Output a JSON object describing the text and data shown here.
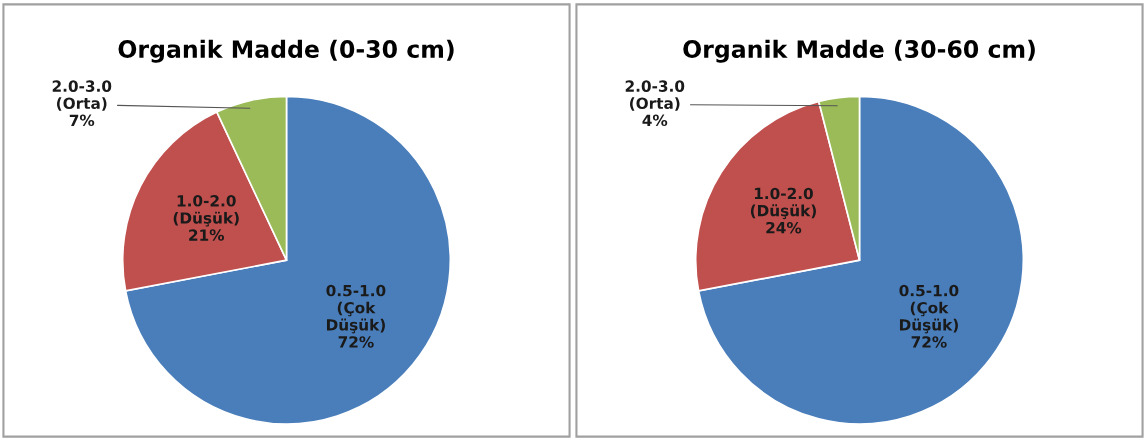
{
  "chart_data": [
    {
      "type": "pie",
      "title": "Organik Madde (0-30 cm)",
      "categories": [
        "0.5-1.0\n(Çok\nDüşük)",
        "1.0-2.0\n(Düşük)",
        "2.0-3.0\n(Orta)"
      ],
      "values": [
        72,
        21,
        7
      ],
      "value_labels": [
        "72%",
        "21%",
        "7%"
      ],
      "colors": [
        "#4a7ebb",
        "#c0504d",
        "#9bbb59"
      ]
    },
    {
      "type": "pie",
      "title": "Organik Madde (30-60 cm)",
      "categories": [
        "0.5-1.0\n(Çok\nDüşük)",
        "1.0-2.0\n(Düşük)",
        "2.0-3.0\n(Orta)"
      ],
      "values": [
        72,
        24,
        4
      ],
      "value_labels": [
        "72%",
        "24%",
        "4%"
      ],
      "colors": [
        "#4a7ebb",
        "#c0504d",
        "#9bbb59"
      ]
    }
  ]
}
